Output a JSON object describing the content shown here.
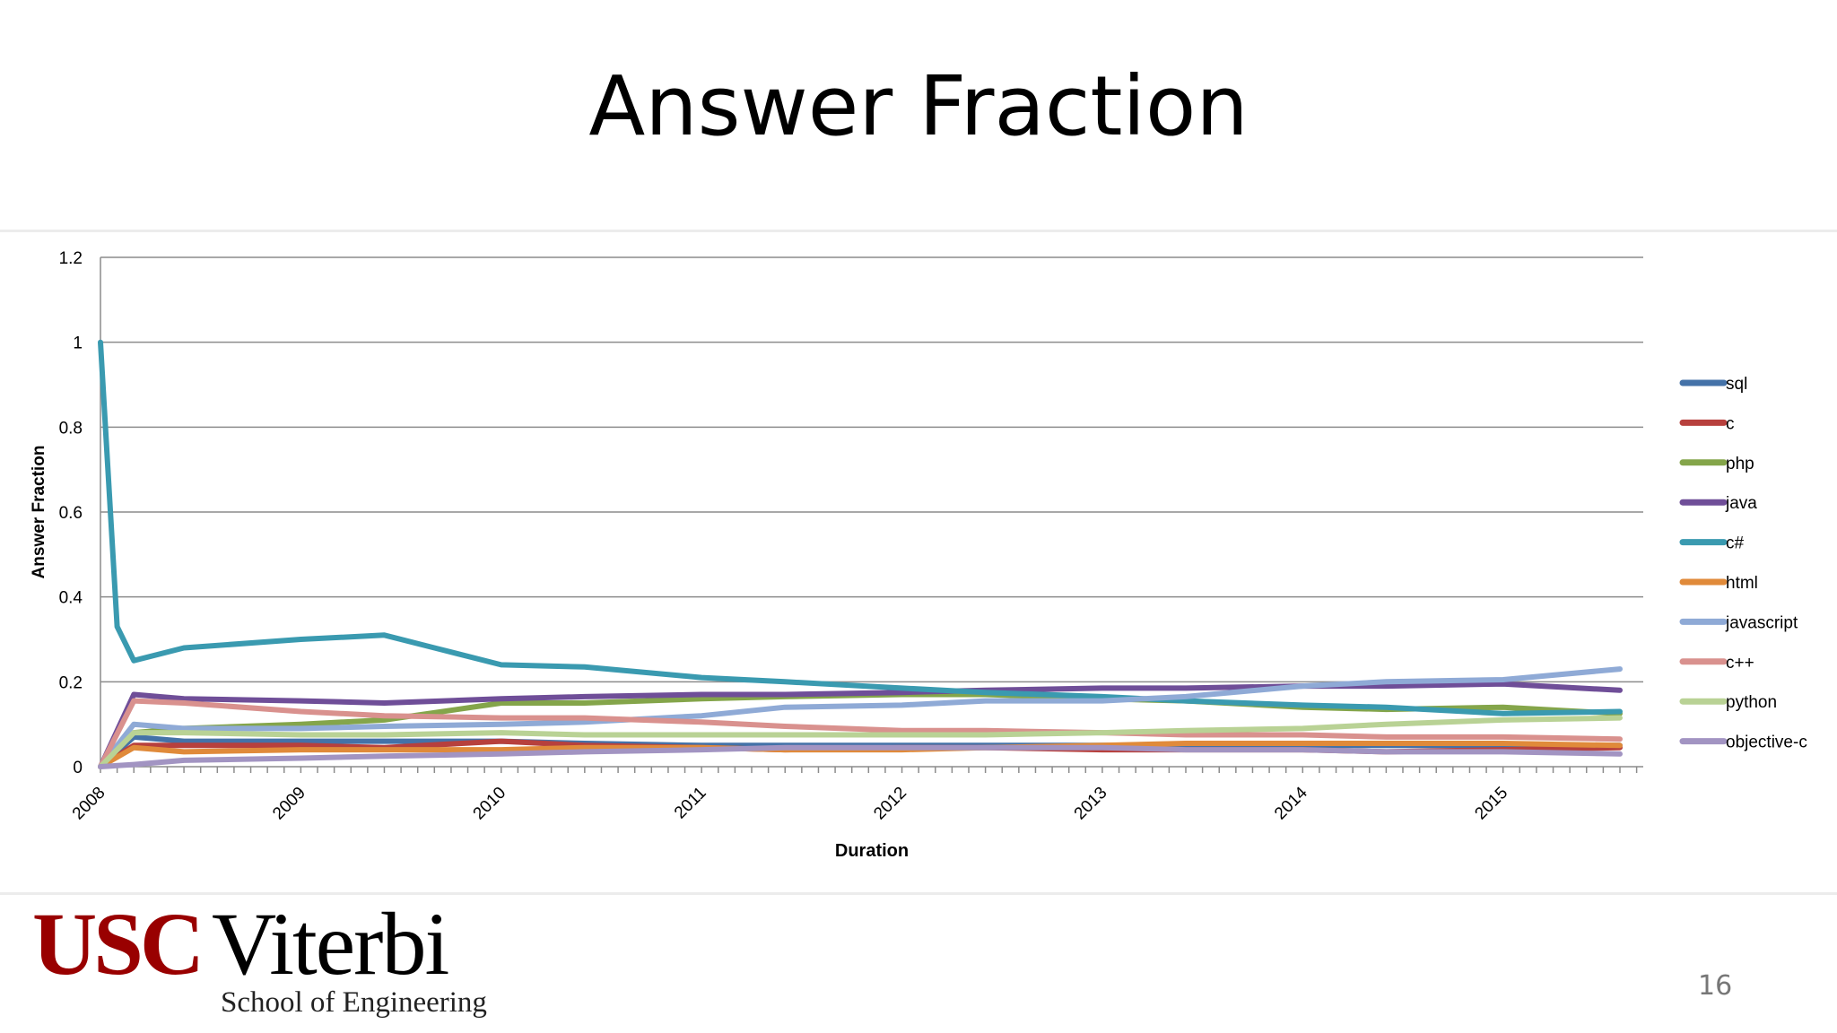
{
  "slide": {
    "title": "Answer Fraction",
    "page_number": "16"
  },
  "logo": {
    "usc": "USC",
    "viterbi": "Viterbi",
    "school": "School of Engineering"
  },
  "chart_data": {
    "type": "line",
    "title": "",
    "xlabel": "Duration",
    "ylabel": "Answer Fraction",
    "ylim": [
      0,
      1.2
    ],
    "y_ticks": [
      "0",
      "0.2",
      "0.4",
      "0.6",
      "0.8",
      "1",
      "1.2"
    ],
    "x_range": [
      "2008-01",
      "2015-08"
    ],
    "x_tick_labels": [
      "2008",
      "2009",
      "2010",
      "2011",
      "2012",
      "2013",
      "2014",
      "2015"
    ],
    "grid": true,
    "legend_position": "right",
    "series": [
      {
        "name": "sql",
        "color": "#4472a8",
        "points": [
          [
            "2008-01",
            0.0
          ],
          [
            "2008-03",
            0.07
          ],
          [
            "2008-06",
            0.06
          ],
          [
            "2009-01",
            0.06
          ],
          [
            "2009-06",
            0.06
          ],
          [
            "2010-01",
            0.06
          ],
          [
            "2010-06",
            0.055
          ],
          [
            "2011-01",
            0.05
          ],
          [
            "2011-06",
            0.05
          ],
          [
            "2012-01",
            0.05
          ],
          [
            "2012-06",
            0.05
          ],
          [
            "2013-01",
            0.05
          ],
          [
            "2013-06",
            0.05
          ],
          [
            "2014-01",
            0.05
          ],
          [
            "2014-06",
            0.05
          ],
          [
            "2015-01",
            0.05
          ],
          [
            "2015-08",
            0.05
          ]
        ]
      },
      {
        "name": "c",
        "color": "#b7403d",
        "points": [
          [
            "2008-01",
            0.0
          ],
          [
            "2008-03",
            0.05
          ],
          [
            "2008-06",
            0.05
          ],
          [
            "2009-01",
            0.05
          ],
          [
            "2009-06",
            0.045
          ],
          [
            "2010-01",
            0.06
          ],
          [
            "2010-06",
            0.05
          ],
          [
            "2011-01",
            0.045
          ],
          [
            "2011-06",
            0.04
          ],
          [
            "2012-01",
            0.045
          ],
          [
            "2012-06",
            0.045
          ],
          [
            "2013-01",
            0.04
          ],
          [
            "2013-06",
            0.04
          ],
          [
            "2014-01",
            0.04
          ],
          [
            "2014-06",
            0.035
          ],
          [
            "2015-01",
            0.04
          ],
          [
            "2015-08",
            0.045
          ]
        ]
      },
      {
        "name": "php",
        "color": "#84a54a",
        "points": [
          [
            "2008-01",
            0.0
          ],
          [
            "2008-03",
            0.08
          ],
          [
            "2008-06",
            0.09
          ],
          [
            "2009-01",
            0.1
          ],
          [
            "2009-06",
            0.11
          ],
          [
            "2010-01",
            0.15
          ],
          [
            "2010-06",
            0.15
          ],
          [
            "2011-01",
            0.16
          ],
          [
            "2011-06",
            0.165
          ],
          [
            "2012-01",
            0.17
          ],
          [
            "2012-06",
            0.17
          ],
          [
            "2013-01",
            0.16
          ],
          [
            "2013-06",
            0.155
          ],
          [
            "2014-01",
            0.14
          ],
          [
            "2014-06",
            0.135
          ],
          [
            "2015-01",
            0.14
          ],
          [
            "2015-08",
            0.125
          ]
        ]
      },
      {
        "name": "java",
        "color": "#6f4e98",
        "points": [
          [
            "2008-01",
            0.0
          ],
          [
            "2008-03",
            0.17
          ],
          [
            "2008-06",
            0.16
          ],
          [
            "2009-01",
            0.155
          ],
          [
            "2009-06",
            0.15
          ],
          [
            "2010-01",
            0.16
          ],
          [
            "2010-06",
            0.165
          ],
          [
            "2011-01",
            0.17
          ],
          [
            "2011-06",
            0.17
          ],
          [
            "2012-01",
            0.175
          ],
          [
            "2012-06",
            0.18
          ],
          [
            "2013-01",
            0.185
          ],
          [
            "2013-06",
            0.185
          ],
          [
            "2014-01",
            0.19
          ],
          [
            "2014-06",
            0.19
          ],
          [
            "2015-01",
            0.195
          ],
          [
            "2015-08",
            0.18
          ]
        ]
      },
      {
        "name": "c#",
        "color": "#3a9ab0",
        "points": [
          [
            "2008-01",
            1.0
          ],
          [
            "2008-02",
            0.33
          ],
          [
            "2008-03",
            0.25
          ],
          [
            "2008-06",
            0.28
          ],
          [
            "2009-01",
            0.3
          ],
          [
            "2009-06",
            0.31
          ],
          [
            "2009-09",
            0.28
          ],
          [
            "2010-01",
            0.24
          ],
          [
            "2010-06",
            0.235
          ],
          [
            "2011-01",
            0.21
          ],
          [
            "2011-06",
            0.2
          ],
          [
            "2012-01",
            0.185
          ],
          [
            "2012-06",
            0.175
          ],
          [
            "2013-01",
            0.165
          ],
          [
            "2013-06",
            0.155
          ],
          [
            "2014-01",
            0.145
          ],
          [
            "2014-06",
            0.14
          ],
          [
            "2015-01",
            0.125
          ],
          [
            "2015-08",
            0.13
          ]
        ]
      },
      {
        "name": "html",
        "color": "#e08a3a",
        "points": [
          [
            "2008-01",
            0.0
          ],
          [
            "2008-03",
            0.045
          ],
          [
            "2008-06",
            0.035
          ],
          [
            "2009-01",
            0.04
          ],
          [
            "2009-06",
            0.04
          ],
          [
            "2010-01",
            0.04
          ],
          [
            "2010-06",
            0.045
          ],
          [
            "2011-01",
            0.045
          ],
          [
            "2011-06",
            0.04
          ],
          [
            "2012-01",
            0.04
          ],
          [
            "2012-06",
            0.045
          ],
          [
            "2013-01",
            0.05
          ],
          [
            "2013-06",
            0.055
          ],
          [
            "2014-01",
            0.055
          ],
          [
            "2014-06",
            0.055
          ],
          [
            "2015-01",
            0.055
          ],
          [
            "2015-08",
            0.05
          ]
        ]
      },
      {
        "name": "javascript",
        "color": "#8faad6",
        "points": [
          [
            "2008-01",
            0.0
          ],
          [
            "2008-03",
            0.1
          ],
          [
            "2008-06",
            0.09
          ],
          [
            "2009-01",
            0.09
          ],
          [
            "2009-06",
            0.095
          ],
          [
            "2010-01",
            0.1
          ],
          [
            "2010-06",
            0.105
          ],
          [
            "2011-01",
            0.12
          ],
          [
            "2011-06",
            0.14
          ],
          [
            "2012-01",
            0.145
          ],
          [
            "2012-06",
            0.155
          ],
          [
            "2013-01",
            0.155
          ],
          [
            "2013-06",
            0.165
          ],
          [
            "2014-01",
            0.19
          ],
          [
            "2014-06",
            0.2
          ],
          [
            "2015-01",
            0.205
          ],
          [
            "2015-08",
            0.23
          ]
        ]
      },
      {
        "name": "c++",
        "color": "#d9918e",
        "points": [
          [
            "2008-01",
            0.0
          ],
          [
            "2008-03",
            0.155
          ],
          [
            "2008-06",
            0.15
          ],
          [
            "2009-01",
            0.13
          ],
          [
            "2009-06",
            0.12
          ],
          [
            "2010-01",
            0.115
          ],
          [
            "2010-06",
            0.115
          ],
          [
            "2011-01",
            0.105
          ],
          [
            "2011-06",
            0.095
          ],
          [
            "2012-01",
            0.085
          ],
          [
            "2012-06",
            0.085
          ],
          [
            "2013-01",
            0.08
          ],
          [
            "2013-06",
            0.075
          ],
          [
            "2014-01",
            0.075
          ],
          [
            "2014-06",
            0.07
          ],
          [
            "2015-01",
            0.07
          ],
          [
            "2015-08",
            0.065
          ]
        ]
      },
      {
        "name": "python",
        "color": "#b9d295",
        "points": [
          [
            "2008-01",
            0.0
          ],
          [
            "2008-03",
            0.08
          ],
          [
            "2008-06",
            0.08
          ],
          [
            "2009-01",
            0.075
          ],
          [
            "2009-06",
            0.075
          ],
          [
            "2010-01",
            0.08
          ],
          [
            "2010-06",
            0.075
          ],
          [
            "2011-01",
            0.075
          ],
          [
            "2011-06",
            0.075
          ],
          [
            "2012-01",
            0.075
          ],
          [
            "2012-06",
            0.075
          ],
          [
            "2013-01",
            0.08
          ],
          [
            "2013-06",
            0.085
          ],
          [
            "2014-01",
            0.09
          ],
          [
            "2014-06",
            0.1
          ],
          [
            "2015-01",
            0.11
          ],
          [
            "2015-08",
            0.115
          ]
        ]
      },
      {
        "name": "objective-c",
        "color": "#a294c2",
        "points": [
          [
            "2008-01",
            0.0
          ],
          [
            "2008-03",
            0.005
          ],
          [
            "2008-06",
            0.015
          ],
          [
            "2009-01",
            0.02
          ],
          [
            "2009-06",
            0.025
          ],
          [
            "2010-01",
            0.03
          ],
          [
            "2010-06",
            0.035
          ],
          [
            "2011-01",
            0.04
          ],
          [
            "2011-06",
            0.045
          ],
          [
            "2012-01",
            0.045
          ],
          [
            "2012-06",
            0.045
          ],
          [
            "2013-01",
            0.045
          ],
          [
            "2013-06",
            0.04
          ],
          [
            "2014-01",
            0.04
          ],
          [
            "2014-06",
            0.035
          ],
          [
            "2015-01",
            0.035
          ],
          [
            "2015-08",
            0.03
          ]
        ]
      }
    ]
  }
}
